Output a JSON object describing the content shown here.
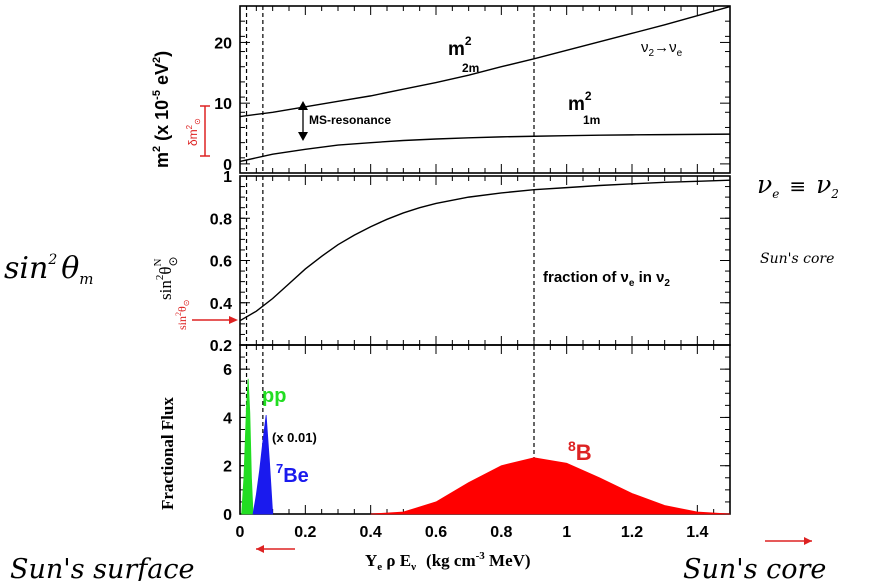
{
  "chart_data": [
    {
      "type": "line",
      "title": "",
      "ylabel": "m^2 (x 10^-5 eV^2)",
      "xlim": [
        0,
        1.5
      ],
      "ylim": [
        -1.5,
        26
      ],
      "ytick_labels": [
        "0",
        "10",
        "20"
      ],
      "yticks": [
        0,
        10,
        20
      ],
      "series": [
        {
          "name": "m^2_2m",
          "x": [
            0,
            0.1,
            0.2,
            0.3,
            0.4,
            0.5,
            0.6,
            0.7,
            0.8,
            0.9,
            1.0,
            1.1,
            1.2,
            1.3,
            1.4,
            1.5
          ],
          "values": [
            7.8,
            8.5,
            9.4,
            10.3,
            11.2,
            12.3,
            13.4,
            14.6,
            16.0,
            17.3,
            18.7,
            20.1,
            21.5,
            22.9,
            24.4,
            25.9
          ]
        },
        {
          "name": "m^2_1m",
          "x": [
            0,
            0.1,
            0.2,
            0.3,
            0.4,
            0.5,
            0.6,
            0.7,
            0.8,
            0.9,
            1.0,
            1.1,
            1.2,
            1.3,
            1.4,
            1.5
          ],
          "values": [
            0.4,
            1.6,
            2.4,
            3.1,
            3.5,
            3.85,
            4.1,
            4.3,
            4.45,
            4.55,
            4.65,
            4.72,
            4.78,
            4.82,
            4.86,
            4.9
          ]
        }
      ],
      "annotations": {
        "m2_2m_base": "m",
        "m2_2m_sup": "2",
        "m2_2m_sub": "2m",
        "m2_1m_base": "m",
        "m2_1m_sup": "2",
        "m2_1m_sub": "1m",
        "transition": "ν",
        "transition_sub1": "2",
        "transition_arrow": "→ν",
        "transition_sub2": "e",
        "resonance": "MS-resonance",
        "delta_m": "δm",
        "delta_m_sub": "⊙",
        "delta_m_sup": "2"
      }
    },
    {
      "type": "line",
      "ylabel": "sin^2 θ^N_⊙",
      "xlim": [
        0,
        1.5
      ],
      "ylim": [
        0.2,
        1.0
      ],
      "yticks": [
        0.2,
        0.4,
        0.6,
        0.8,
        1.0
      ],
      "ytick_labels": [
        "0.2",
        "0.4",
        "0.6",
        "0.8",
        "1"
      ],
      "series": [
        {
          "name": "fraction of νe in ν2",
          "x": [
            0,
            0.05,
            0.1,
            0.15,
            0.2,
            0.25,
            0.3,
            0.35,
            0.4,
            0.45,
            0.5,
            0.55,
            0.6,
            0.7,
            0.8,
            0.9,
            1.0,
            1.1,
            1.2,
            1.3,
            1.4,
            1.5
          ],
          "values": [
            0.315,
            0.36,
            0.42,
            0.49,
            0.56,
            0.62,
            0.675,
            0.72,
            0.76,
            0.795,
            0.825,
            0.85,
            0.87,
            0.9,
            0.92,
            0.935,
            0.945,
            0.955,
            0.963,
            0.97,
            0.975,
            0.98
          ]
        }
      ],
      "annotations": {
        "fraction_label": "fraction of ν",
        "fraction_sub1": "e",
        "fraction_in": " in ν",
        "fraction_sub2": "2",
        "sin_label": "sin",
        "sin_sup": "2",
        "sin_theta": "θ",
        "sin_theta_sub": "⊙"
      }
    },
    {
      "type": "area",
      "ylabel": "Fractional Flux",
      "xlabel": "Y_e ρ E_ν (kg cm^-3 MeV)",
      "xlim": [
        0,
        1.5
      ],
      "ylim": [
        0,
        7
      ],
      "yticks": [
        0,
        2,
        4,
        6
      ],
      "ytick_labels": [
        "0",
        "2",
        "4",
        "6"
      ],
      "xticks": [
        0,
        0.2,
        0.4,
        0.6,
        0.8,
        1.0,
        1.2,
        1.4
      ],
      "xtick_labels": [
        "0",
        "0.2",
        "0.4",
        "0.6",
        "0.8",
        "1",
        "1.2",
        "1.4"
      ],
      "series": [
        {
          "name": "pp",
          "color": "#22dd22",
          "x": [
            0.005,
            0.012,
            0.02,
            0.025,
            0.03,
            0.035,
            0.04
          ],
          "values": [
            0,
            1.5,
            4.5,
            5.6,
            4.2,
            1.5,
            0
          ]
        },
        {
          "name": "7Be",
          "color": "#1a1aee",
          "x": [
            0.04,
            0.05,
            0.06,
            0.07,
            0.08,
            0.09,
            0.1
          ],
          "values": [
            0,
            0.8,
            1.8,
            3.0,
            4.1,
            2.2,
            0
          ]
        },
        {
          "name": "8B",
          "color": "#ff0000",
          "x": [
            0.4,
            0.5,
            0.6,
            0.7,
            0.8,
            0.9,
            1.0,
            1.1,
            1.2,
            1.3,
            1.4,
            1.5
          ],
          "values": [
            0,
            0.08,
            0.5,
            1.3,
            2.0,
            2.33,
            2.1,
            1.5,
            0.85,
            0.35,
            0.08,
            0
          ]
        }
      ],
      "annotations": {
        "pp_label": "pp",
        "be_sup": "7",
        "be_label": "Be",
        "be_scale": "(x 0.01)",
        "b_sup": "8",
        "b_label": "B",
        "xlabel_Y": "Y",
        "xlabel_e": "e",
        "xlabel_mid": " ρ E",
        "xlabel_nu": "ν",
        "xlabel_units": "(kg cm",
        "xlabel_exp": "-3",
        "xlabel_units2": " MeV)"
      }
    }
  ],
  "handwritten": {
    "sin_m": "sin",
    "sin_m_sup": "2",
    "sin_m_theta": "θ",
    "sin_m_sub": "m",
    "nu_eq": "ν",
    "nu_eq_sub1": "e",
    "nu_eq_mid": "≡",
    "nu_eq_2": "ν",
    "nu_eq_sub2": "2",
    "suns_core_small": "Sun's core",
    "suns_surface": "Sun's surface",
    "suns_core": "Sun's core"
  },
  "colors": {
    "red": "#dd2222",
    "green": "#22dd22",
    "blue": "#1a1aee",
    "black": "#000000"
  }
}
